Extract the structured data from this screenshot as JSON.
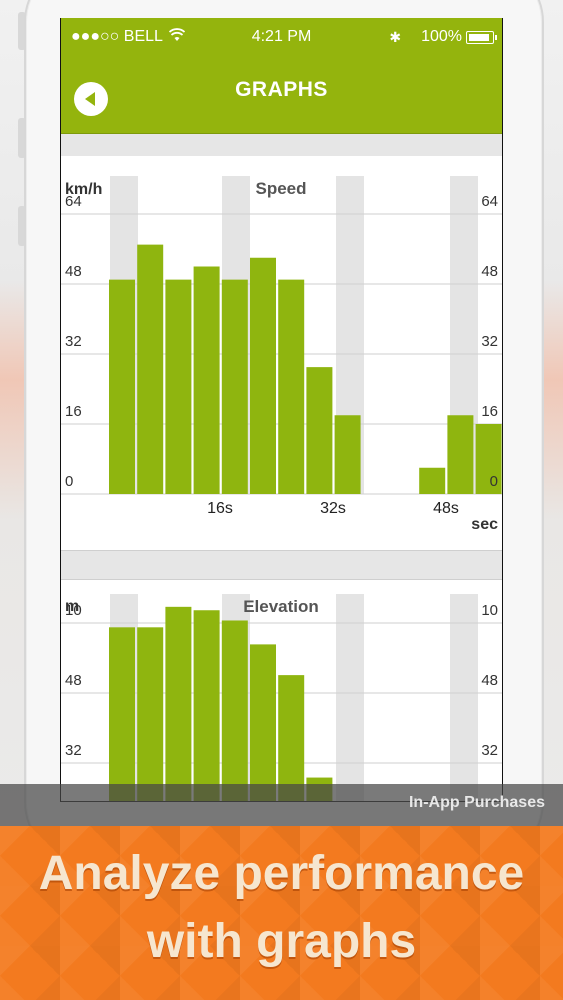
{
  "status_bar": {
    "carrier": "●●●○○ BELL",
    "wifi_icon": "wifi-icon",
    "time": "4:21 PM",
    "bluetooth_icon": "bluetooth-icon",
    "battery": "100%"
  },
  "nav": {
    "title": "GRAPHS",
    "back_icon": "back-arrow-icon"
  },
  "colors": {
    "accent": "#94b40d",
    "bar": "#8fb50f",
    "band": "#e4e4e4",
    "banner": "#f37a1f"
  },
  "chart_data": [
    {
      "type": "bar",
      "title": "Speed",
      "ylabel": "km/h",
      "xlabel": "sec",
      "yticks": [
        "0",
        "16",
        "32",
        "48",
        "64"
      ],
      "xticks": [
        "16s",
        "32s",
        "48s"
      ],
      "ylim": [
        0,
        64
      ],
      "x": [
        2,
        6,
        10,
        14,
        18,
        22,
        26,
        30,
        34,
        38,
        42,
        46,
        50,
        54
      ],
      "values": [
        49,
        57,
        49,
        52,
        49,
        54,
        49,
        29,
        18,
        0,
        0,
        6,
        18,
        16
      ]
    },
    {
      "type": "bar",
      "title": "Elevation",
      "ylabel": "m",
      "yticks_left": [
        "32",
        "48",
        "10"
      ],
      "yticks_right": [
        "32",
        "48",
        "10"
      ],
      "values": [
        74,
        74,
        80,
        79,
        76,
        69,
        60,
        30
      ]
    }
  ],
  "overlay": {
    "iap_label": "In-App Purchases"
  },
  "banner": {
    "line1": "Analyze performance",
    "line2": "with graphs"
  }
}
